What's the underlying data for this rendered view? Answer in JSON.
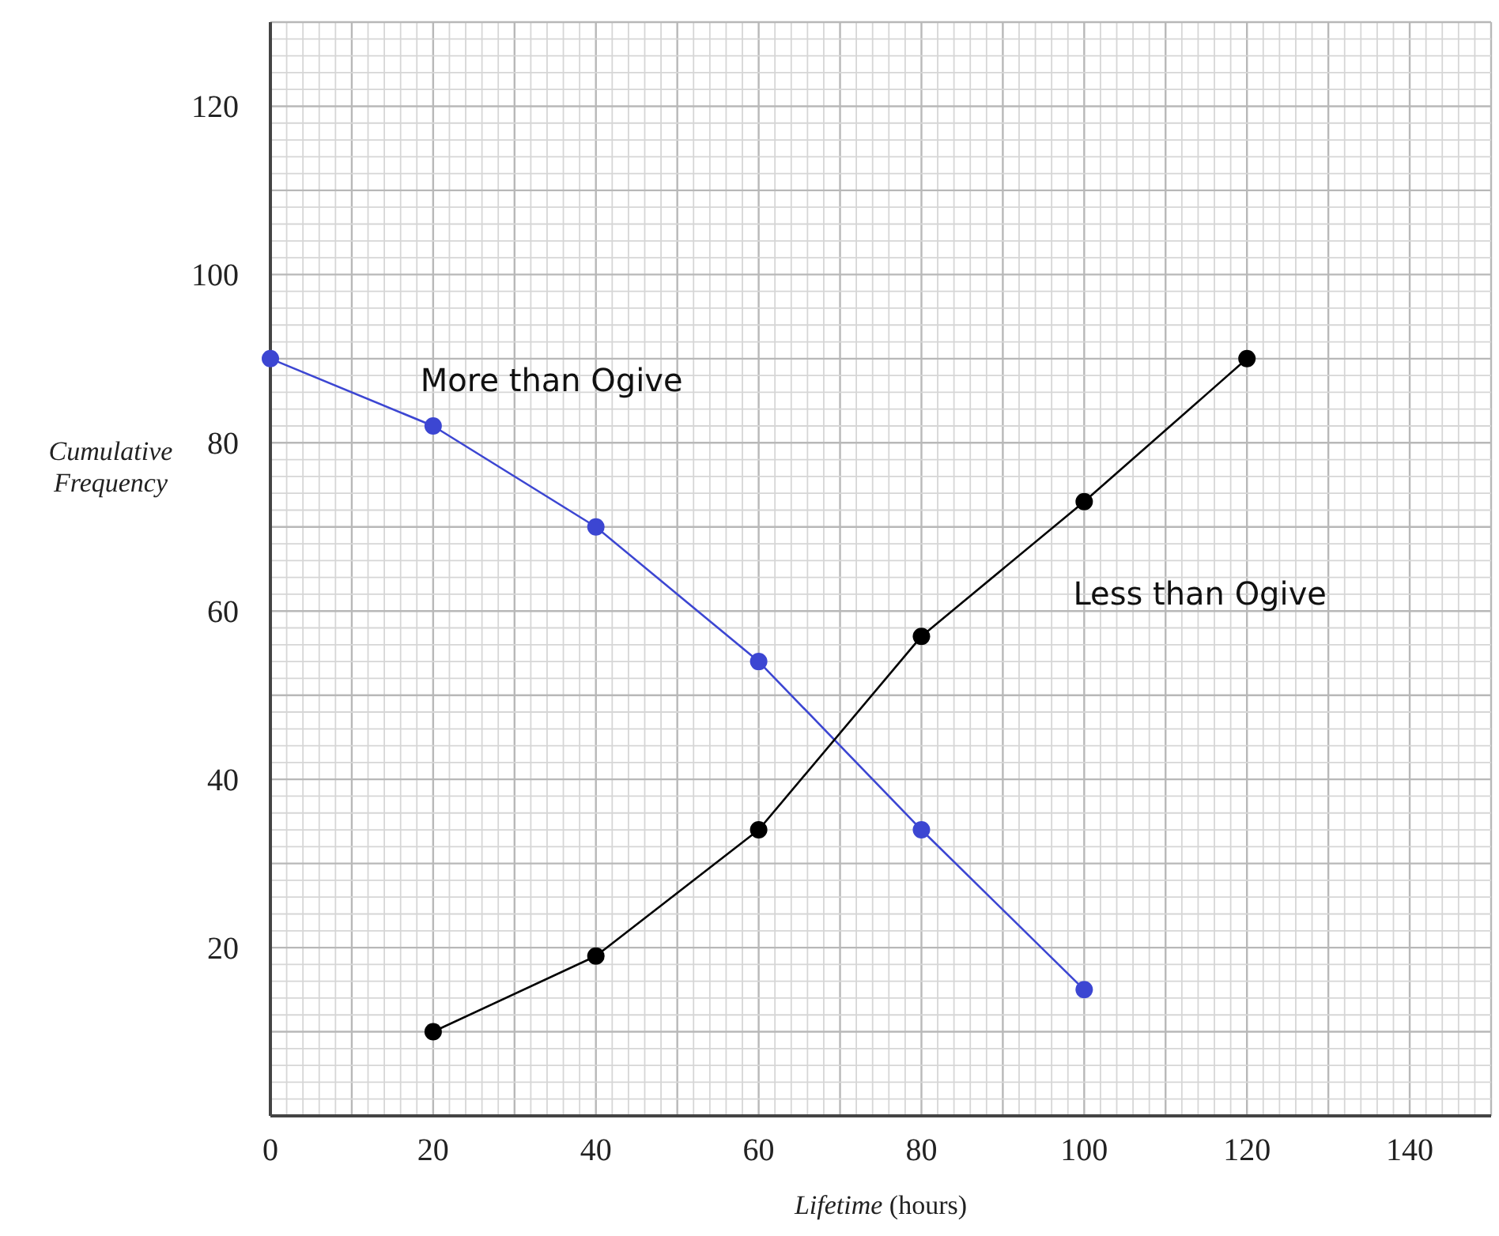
{
  "chart_data": {
    "type": "line",
    "xlabel": "Lifetime (hours)",
    "ylabel": "Cumulative Frequency",
    "xlim": [
      0,
      150
    ],
    "ylim": [
      0,
      130
    ],
    "xticks": [
      0,
      20,
      40,
      60,
      80,
      100,
      120,
      140
    ],
    "yticks": [
      20,
      40,
      60,
      80,
      100,
      120
    ],
    "grid": true,
    "marker": "circle",
    "line_style": "solid",
    "series": [
      {
        "name": "More than Ogive",
        "color": "#3c46d2",
        "x": [
          0,
          20,
          40,
          60,
          80,
          100
        ],
        "values": [
          90,
          82,
          70,
          54,
          34,
          15
        ]
      },
      {
        "name": "Less than Ogive",
        "color": "#000000",
        "x": [
          20,
          40,
          60,
          80,
          100,
          120
        ],
        "values": [
          10,
          19,
          34,
          57,
          73,
          90
        ]
      }
    ]
  }
}
